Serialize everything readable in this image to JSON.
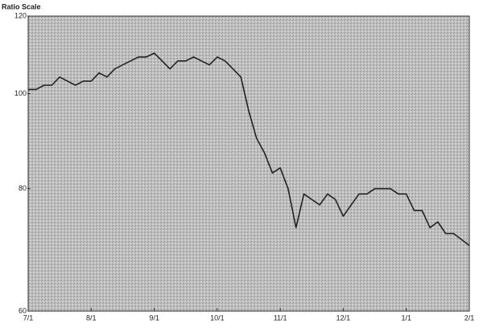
{
  "chart_data": {
    "type": "line",
    "title": "Ratio Scale",
    "categories": [
      "7/1",
      null,
      null,
      null,
      null,
      null,
      null,
      null,
      "8/1",
      null,
      null,
      null,
      null,
      null,
      null,
      null,
      "9/1",
      null,
      null,
      null,
      null,
      null,
      null,
      null,
      "10/1",
      null,
      null,
      null,
      null,
      null,
      null,
      null,
      "11/1",
      null,
      null,
      null,
      null,
      null,
      null,
      null,
      "12/1",
      null,
      null,
      null,
      null,
      null,
      null,
      null,
      "1/1",
      null,
      null,
      null,
      null,
      null,
      null,
      null,
      "2/1"
    ],
    "values": [
      101,
      101,
      102,
      102,
      104,
      103,
      102,
      103,
      103,
      105,
      104,
      106,
      107,
      108,
      109,
      109,
      110,
      108,
      106,
      108,
      108,
      109,
      108,
      107,
      109,
      108,
      106,
      104,
      96,
      90,
      87,
      83,
      84,
      80,
      73,
      79,
      78,
      77,
      79,
      78,
      75,
      77,
      79,
      79,
      80,
      80,
      80,
      79,
      79,
      76,
      76,
      73,
      74,
      72,
      72,
      71,
      70
    ],
    "color": "#222222",
    "ylim": [
      60,
      120
    ],
    "yticks": [
      60,
      80,
      100,
      120
    ],
    "log_scale": true,
    "grid": false
  }
}
